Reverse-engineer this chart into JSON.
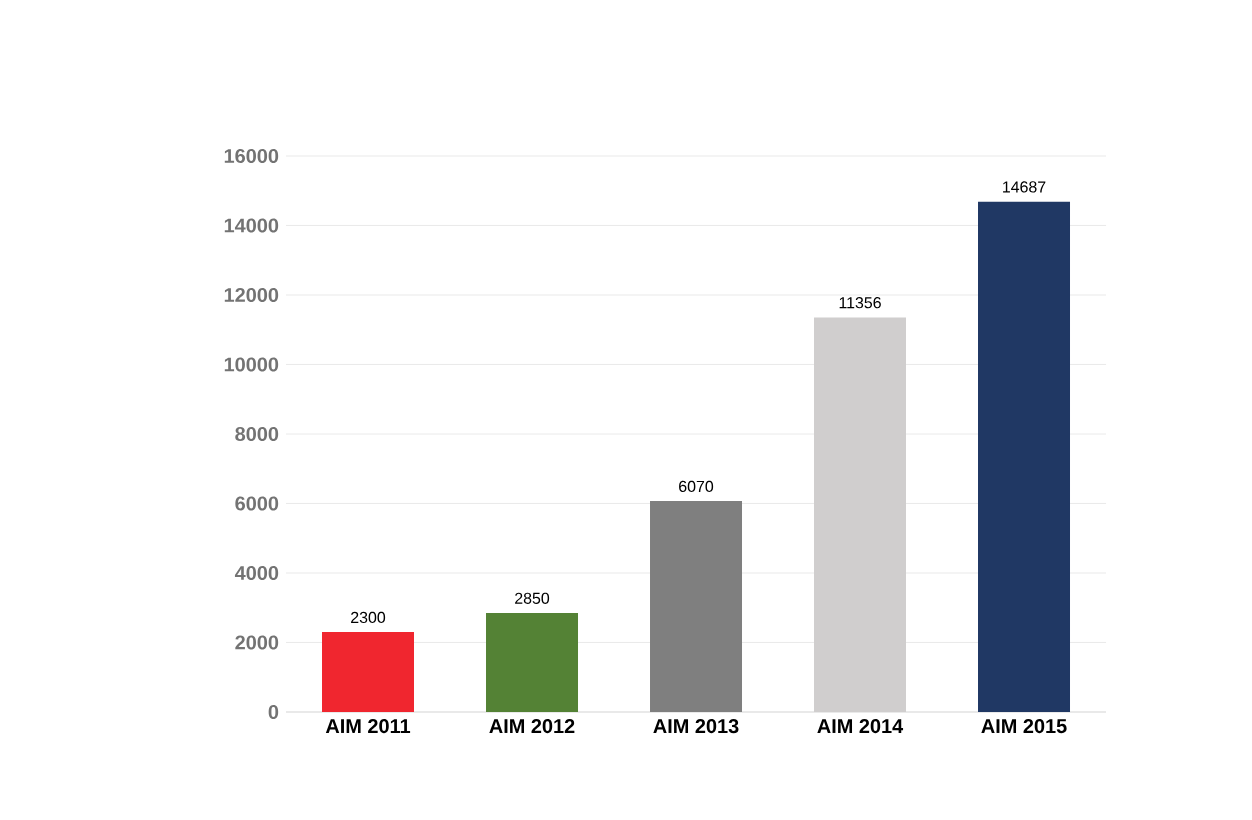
{
  "chart_data": {
    "type": "bar",
    "categories": [
      "AIM 2011",
      "AIM 2012",
      "AIM 2013",
      "AIM 2014",
      "AIM 2015"
    ],
    "values": [
      2300,
      2850,
      6070,
      11356,
      14687
    ],
    "colors": [
      "#f0262f",
      "#548235",
      "#7f7f7f",
      "#d0cece",
      "#203864"
    ],
    "ylim": [
      0,
      16000
    ],
    "yticks": [
      0,
      2000,
      4000,
      6000,
      8000,
      10000,
      12000,
      14000,
      16000
    ],
    "grid": "y",
    "data_labels": true
  }
}
